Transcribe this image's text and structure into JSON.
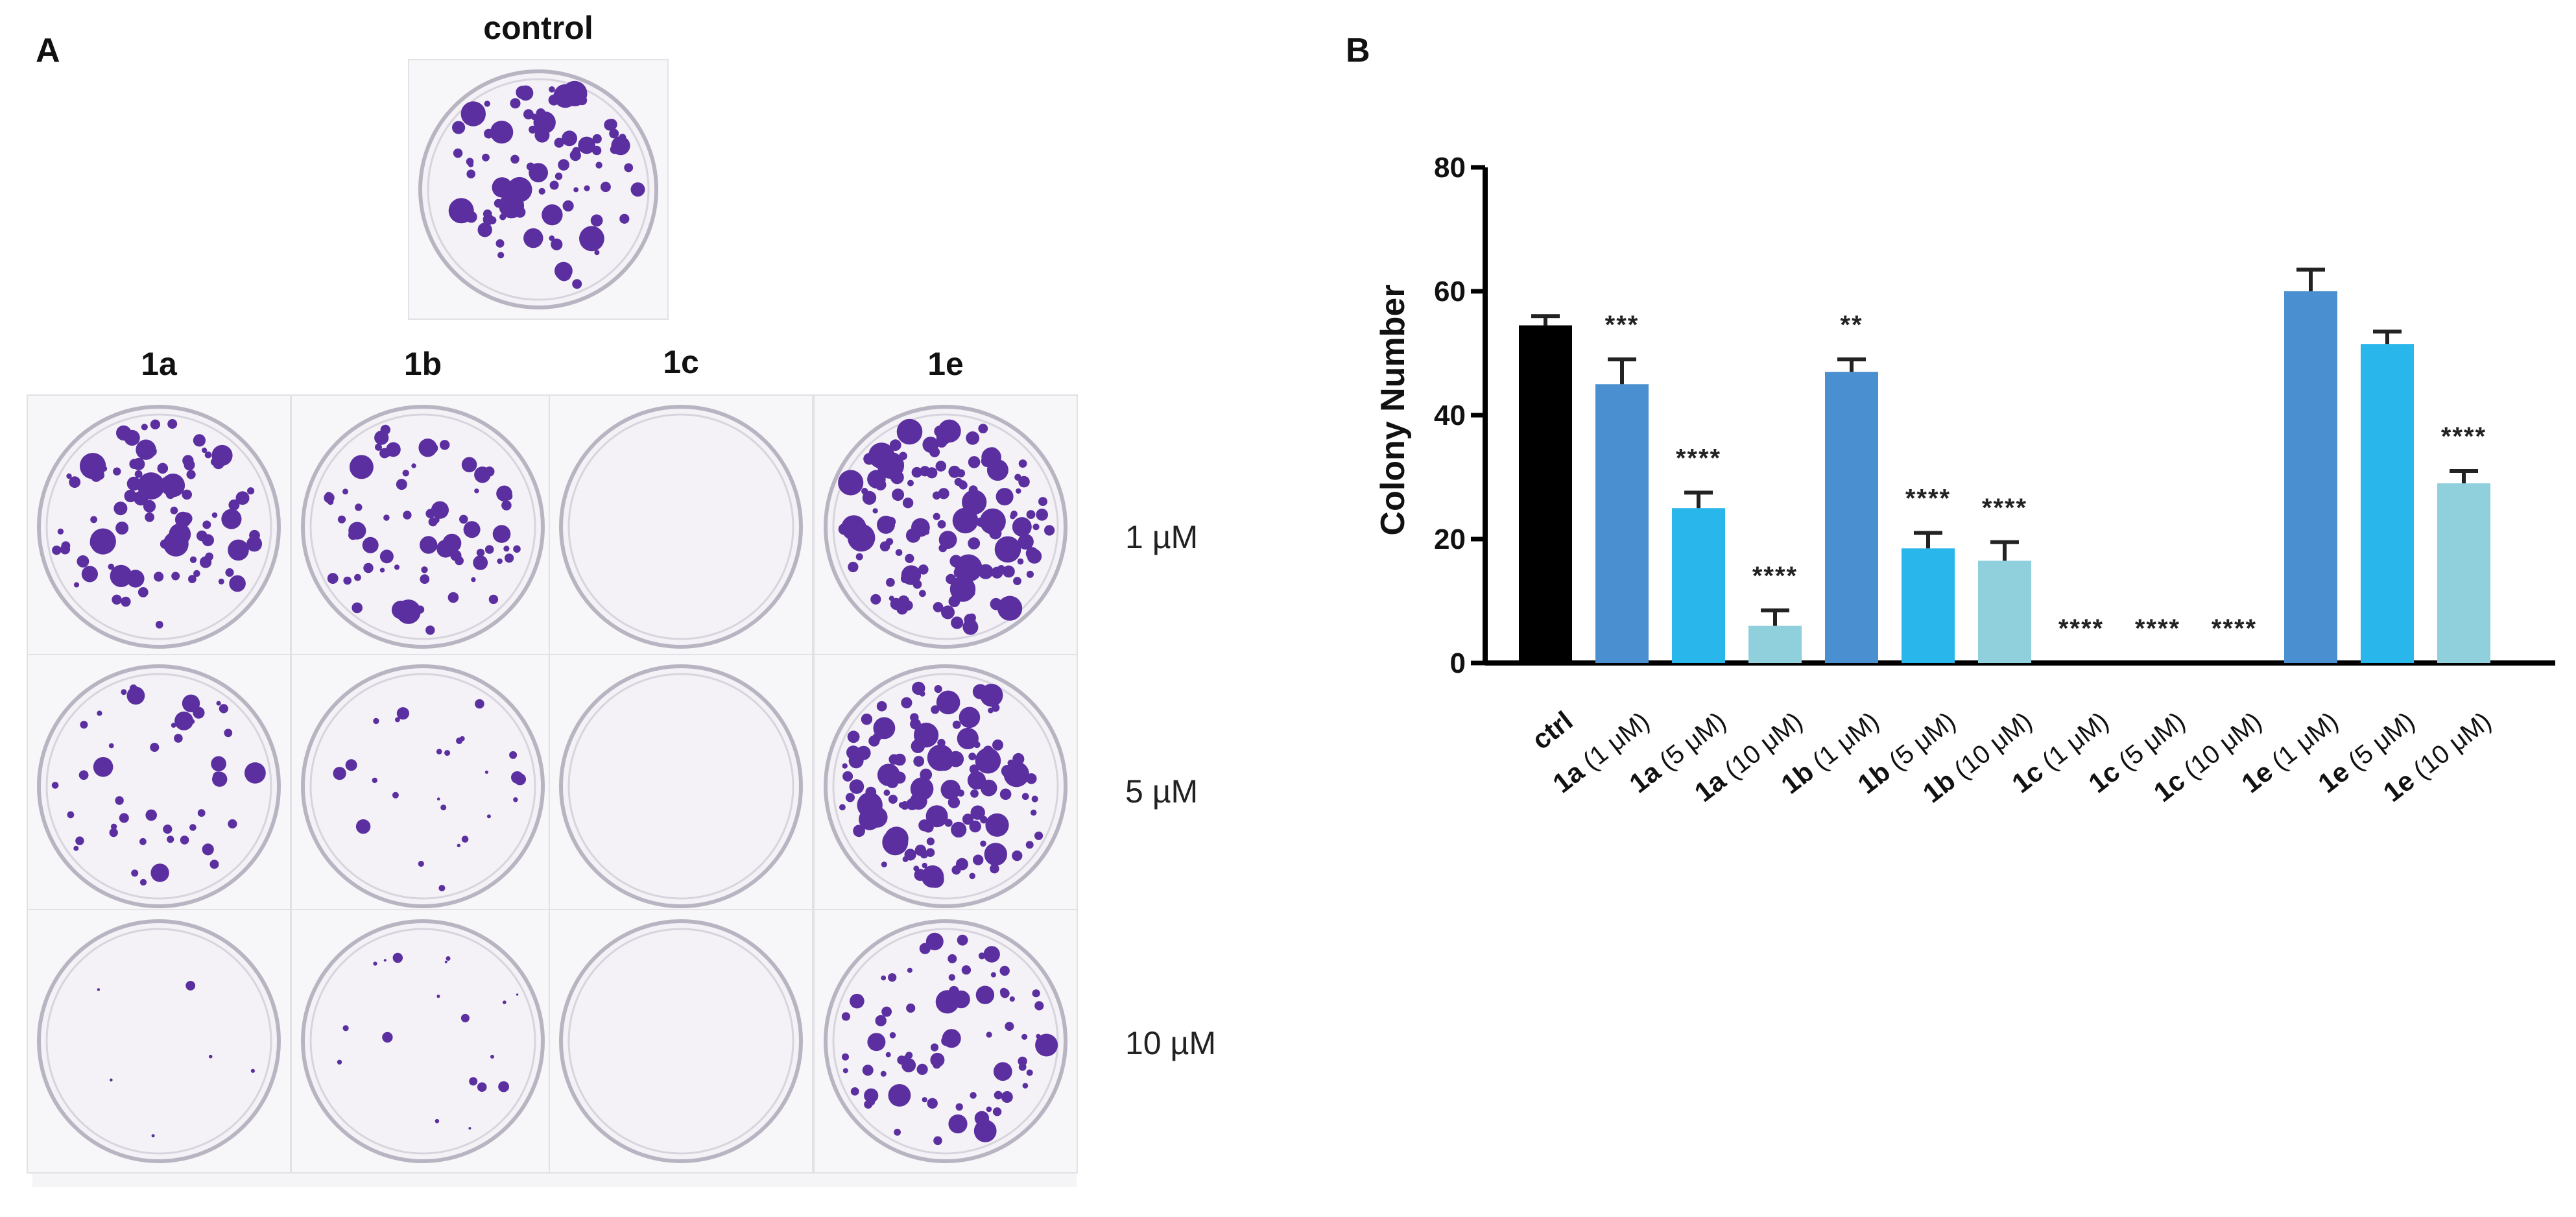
{
  "panel_a": {
    "letter": "A",
    "control_label": "control",
    "columns": [
      "1a",
      "1b",
      "1c",
      "1e"
    ],
    "concentrations": [
      "1 µM",
      "5 µM",
      "10 µM"
    ],
    "colony_color": "#5b2fa0",
    "plate_color": "#f4f2f6"
  },
  "panel_b": {
    "letter": "B"
  },
  "chart_data": {
    "type": "bar",
    "ylabel": "Colony  Number",
    "ylim": [
      0,
      80
    ],
    "yticks": [
      0,
      20,
      40,
      60,
      80
    ],
    "categories": [
      {
        "compound": "ctrl",
        "conc": ""
      },
      {
        "compound": "1a",
        "conc": " (1 μM)"
      },
      {
        "compound": "1a",
        "conc": " (5 μM)"
      },
      {
        "compound": "1a",
        "conc": " (10 μM)"
      },
      {
        "compound": "1b",
        "conc": " (1 μM)"
      },
      {
        "compound": "1b",
        "conc": " (5 μM)"
      },
      {
        "compound": "1b",
        "conc": " (10 μM)"
      },
      {
        "compound": "1c",
        "conc": " (1 μM)"
      },
      {
        "compound": "1c",
        "conc": " (5 μM)"
      },
      {
        "compound": "1c",
        "conc": " (10 μM)"
      },
      {
        "compound": "1e",
        "conc": " (1 μM)"
      },
      {
        "compound": "1e",
        "conc": " (5 μM)"
      },
      {
        "compound": "1e",
        "conc": " (10 μM)"
      }
    ],
    "values": [
      54.5,
      45,
      25,
      6,
      47,
      18.5,
      16.5,
      0,
      0,
      0,
      60,
      51.5,
      29
    ],
    "errors": [
      1.5,
      4,
      2.5,
      2.5,
      2,
      2.5,
      3,
      0,
      0,
      0,
      3.5,
      2,
      2
    ],
    "significance": [
      "",
      "***",
      "****",
      "****",
      "**",
      "****",
      "****",
      "****",
      "****",
      "****",
      "",
      "",
      "****"
    ],
    "colors": [
      "#000000",
      "#4a90d0",
      "#29b6ea",
      "#8fd0dc",
      "#4a90d0",
      "#29b6ea",
      "#8fd0dc",
      "#4a90d0",
      "#29b6ea",
      "#8fd0dc",
      "#4a90d0",
      "#29b6ea",
      "#8fd0dc"
    ],
    "grid": false,
    "legend": "none"
  }
}
